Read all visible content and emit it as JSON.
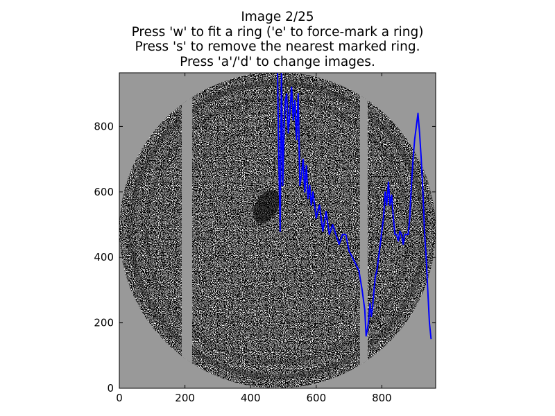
{
  "title_lines": [
    "Image 2/25",
    "Press 'w' to fit a ring ('e' to force-mark a ring)",
    "Press 's' to remove the nearest marked ring.",
    "Press 'a'/'d' to change images."
  ],
  "colors": {
    "figure_background": "#ffffff",
    "axes_background": "#999999",
    "trace": "#0000ff",
    "frame": "#000000"
  },
  "chart_data": {
    "type": "line",
    "background_image": "noisy grayscale circular diffraction detector image with masked vertical gaps",
    "xlim": [
      0,
      964
    ],
    "ylim": [
      0,
      964
    ],
    "xticks": [
      0,
      200,
      400,
      600,
      800
    ],
    "yticks": [
      0,
      200,
      400,
      600,
      800
    ],
    "series": [
      {
        "color": "#0000ff",
        "x": [
          482,
          486,
          490,
          494,
          498,
          502,
          506,
          510,
          515,
          520,
          525,
          530,
          535,
          540,
          545,
          550,
          555,
          560,
          565,
          570,
          575,
          580,
          585,
          590,
          600,
          610,
          620,
          630,
          640,
          650,
          660,
          670,
          680,
          690,
          700,
          710,
          720,
          730,
          740,
          748,
          752,
          756,
          760,
          764,
          768,
          772,
          776,
          780,
          785,
          790,
          795,
          800,
          805,
          810,
          815,
          820,
          825,
          830,
          835,
          840,
          845,
          850,
          855,
          860,
          865,
          870,
          875,
          880,
          885,
          890,
          895,
          900,
          905,
          910,
          915,
          920,
          925,
          930,
          935,
          940,
          945,
          950
        ],
        "y": [
          964,
          700,
          480,
          964,
          620,
          800,
          880,
          900,
          780,
          850,
          920,
          820,
          880,
          760,
          900,
          620,
          650,
          700,
          600,
          680,
          580,
          620,
          560,
          600,
          520,
          560,
          480,
          540,
          470,
          500,
          470,
          440,
          470,
          470,
          420,
          400,
          380,
          360,
          300,
          240,
          160,
          180,
          210,
          260,
          220,
          250,
          300,
          340,
          360,
          400,
          440,
          480,
          520,
          600,
          560,
          630,
          560,
          590,
          520,
          470,
          470,
          450,
          480,
          470,
          440,
          470,
          470,
          470,
          520,
          620,
          700,
          760,
          800,
          840,
          780,
          700,
          600,
          480,
          400,
          300,
          200,
          150
        ]
      }
    ]
  }
}
